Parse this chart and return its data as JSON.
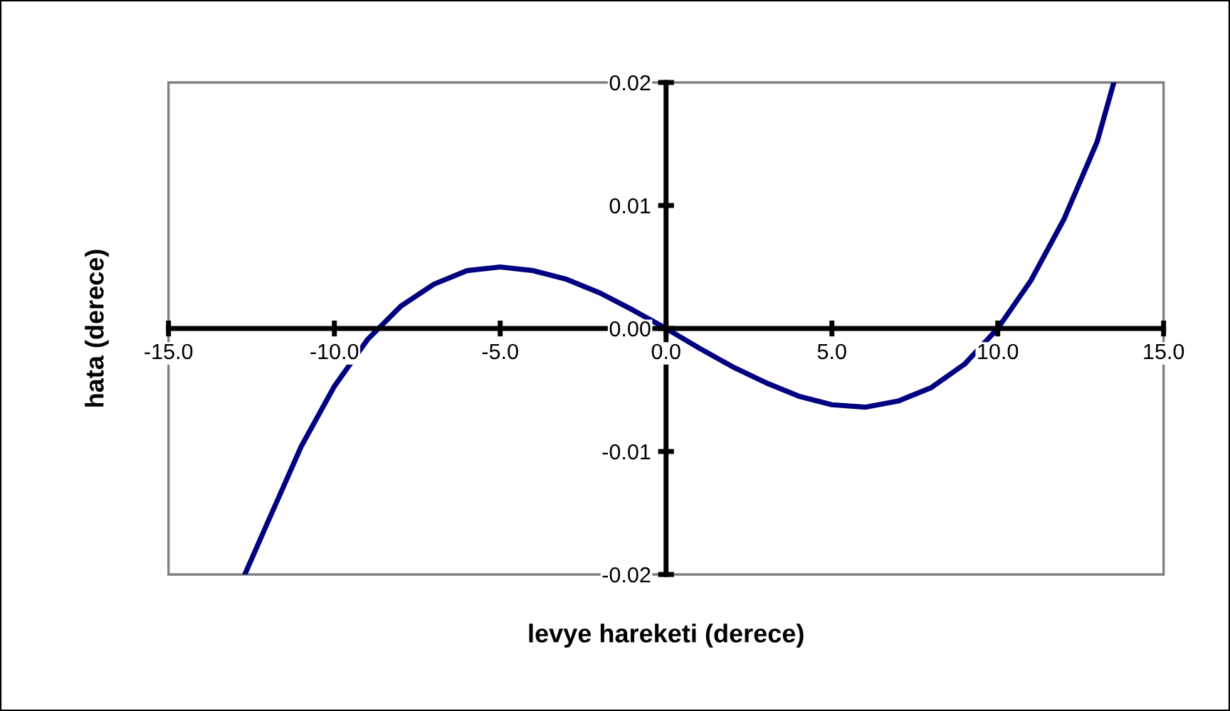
{
  "chart_data": {
    "type": "line",
    "xlabel": "levye hareketi (derece)",
    "ylabel": "hata (derece)",
    "x": [
      -12.7,
      -12,
      -11,
      -10,
      -9,
      -8,
      -7,
      -6,
      -5,
      -4,
      -3,
      -2,
      -1,
      0,
      1,
      2,
      3,
      4,
      5,
      6,
      7,
      8,
      9,
      10,
      11,
      12,
      13,
      13.5
    ],
    "series": [
      {
        "color": "#000080",
        "values": [
          -0.02,
          -0.0157,
          -0.0096,
          -0.0047,
          -0.0009,
          0.0018,
          0.0036,
          0.0047,
          0.005,
          0.0047,
          0.004,
          0.0029,
          0.0015,
          0.0,
          -0.0016,
          -0.0031,
          -0.0044,
          -0.0055,
          -0.0062,
          -0.0064,
          -0.0059,
          -0.0048,
          -0.0029,
          0.0,
          0.0039,
          0.0089,
          0.0152,
          0.02
        ]
      }
    ],
    "xlim": [
      -15,
      15
    ],
    "ylim": [
      -0.02,
      0.02
    ],
    "xticks": [
      {
        "value": -15,
        "label": "-15.0"
      },
      {
        "value": -10,
        "label": "-10.0"
      },
      {
        "value": -5,
        "label": "-5.0"
      },
      {
        "value": 0,
        "label": "0.0"
      },
      {
        "value": 5,
        "label": "5.0"
      },
      {
        "value": 10,
        "label": "10.0"
      },
      {
        "value": 15,
        "label": "15.0"
      }
    ],
    "yticks": [
      {
        "value": -0.02,
        "label": "-0.02"
      },
      {
        "value": -0.01,
        "label": "-0.01"
      },
      {
        "value": 0,
        "label": "0.00"
      },
      {
        "value": 0.01,
        "label": "0.01"
      },
      {
        "value": 0.02,
        "label": "0.02"
      }
    ],
    "grid": false,
    "legend": false,
    "marker": "none",
    "line_style": "solid"
  }
}
